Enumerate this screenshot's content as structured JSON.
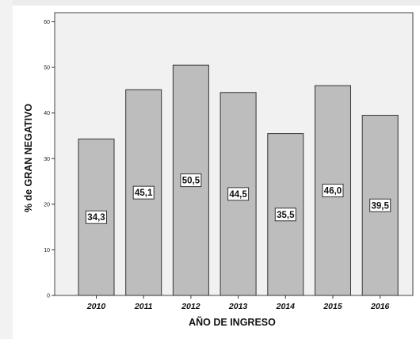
{
  "chart_data": {
    "type": "bar",
    "categories": [
      "2010",
      "2011",
      "2012",
      "2013",
      "2014",
      "2015",
      "2016"
    ],
    "values": [
      34.3,
      45.1,
      50.5,
      44.5,
      35.5,
      46.0,
      39.5
    ],
    "data_labels": [
      "34,3",
      "45,1",
      "50,5",
      "44,5",
      "35,5",
      "46,0",
      "39,5"
    ],
    "xlabel": "AÑO DE INGRESO",
    "ylabel": "% de GRAN NEGATIVO",
    "ylim": [
      0,
      62
    ],
    "yticks": [
      0,
      10,
      20,
      30,
      40,
      50,
      60
    ],
    "grid": false,
    "legend": "none",
    "colors": {
      "bar_fill": "#bdbdbd",
      "bar_stroke": "#333333",
      "plot_background": "#f1f1f1",
      "label_box": "#ffffff"
    }
  }
}
